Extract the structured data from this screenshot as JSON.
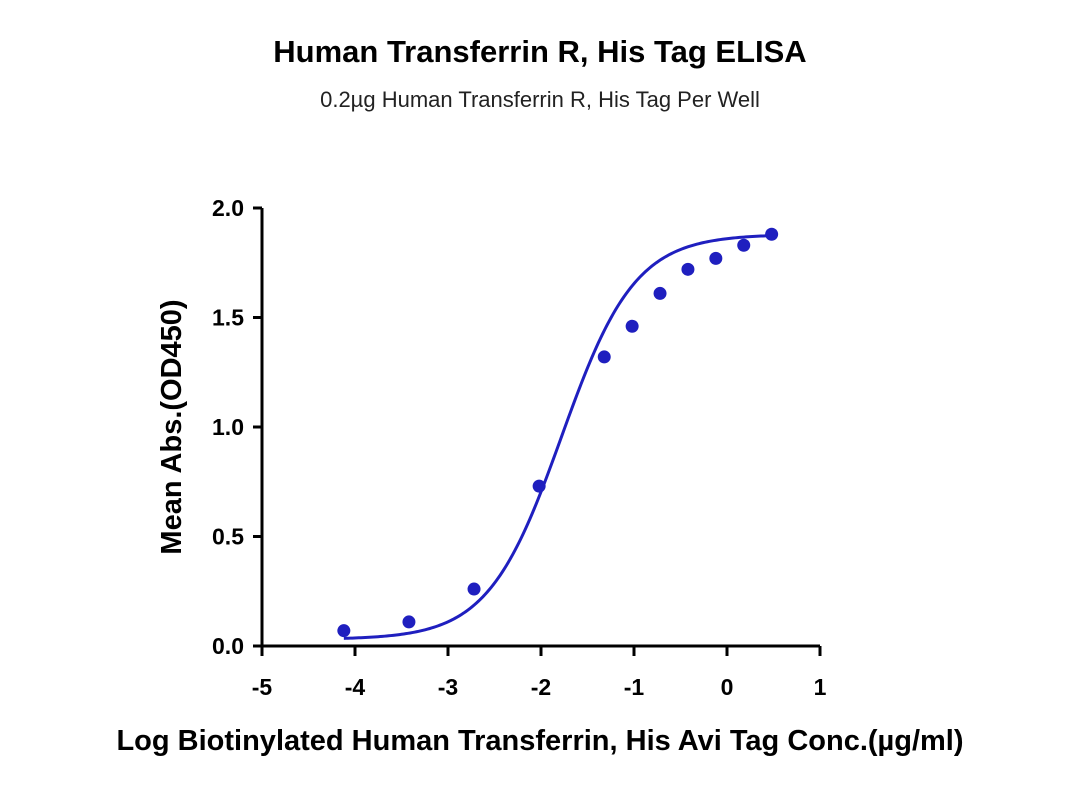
{
  "chart_data": {
    "type": "scatter",
    "title": "Human Transferrin R, His Tag ELISA",
    "subtitle": "0.2µg Human Transferrin R, His Tag Per Well",
    "xlabel": "Log Biotinylated Human Transferrin, His Avi Tag Conc.(µg/ml)",
    "ylabel": "Mean Abs.(OD450)",
    "xlim": [
      -5,
      1
    ],
    "ylim": [
      0,
      2.0
    ],
    "x_ticks": [
      "-5",
      "-4",
      "-3",
      "-2",
      "-1",
      "0",
      "1"
    ],
    "y_ticks": [
      "0.0",
      "0.5",
      "1.0",
      "1.5",
      "2.0"
    ],
    "grid": false,
    "series": [
      {
        "color": "#1f1fbf",
        "points": [
          {
            "x": -4.12,
            "y": 0.07
          },
          {
            "x": -3.42,
            "y": 0.11
          },
          {
            "x": -2.72,
            "y": 0.26
          },
          {
            "x": -2.02,
            "y": 0.73
          },
          {
            "x": -1.32,
            "y": 1.32
          },
          {
            "x": -1.02,
            "y": 1.46
          },
          {
            "x": -0.72,
            "y": 1.61
          },
          {
            "x": -0.42,
            "y": 1.72
          },
          {
            "x": -0.12,
            "y": 1.77
          },
          {
            "x": 0.18,
            "y": 1.83
          },
          {
            "x": 0.48,
            "y": 1.88
          }
        ],
        "fit": {
          "model": "4PL",
          "bottom": 0.03,
          "top": 1.88,
          "log_ec50": -1.78,
          "hill": 1.1,
          "x_range": [
            -4.12,
            0.48
          ]
        }
      }
    ]
  }
}
